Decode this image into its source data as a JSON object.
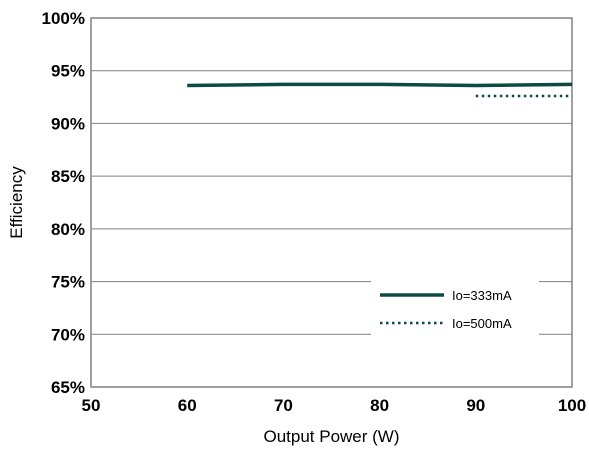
{
  "chart_data": {
    "type": "line",
    "title": "",
    "xlabel": "Output Power (W)",
    "ylabel": "Efficiency",
    "xlim": [
      50,
      100
    ],
    "ylim": [
      65,
      100
    ],
    "x_ticks": [
      50,
      60,
      70,
      80,
      90,
      100
    ],
    "x_tick_labels": [
      "50",
      "60",
      "70",
      "80",
      "90",
      "100"
    ],
    "y_ticks": [
      65,
      70,
      75,
      80,
      85,
      90,
      95,
      100
    ],
    "y_tick_labels": [
      "65%",
      "70%",
      "75%",
      "80%",
      "85%",
      "90%",
      "95%",
      "100%"
    ],
    "grid": "horizontal",
    "legend_position": "bottom-right",
    "series": [
      {
        "name": "Io=333mA",
        "style": "solid",
        "color": "#0b4a45",
        "points": [
          [
            60,
            93.6
          ],
          [
            70,
            93.7
          ],
          [
            80,
            93.7
          ],
          [
            90,
            93.6
          ],
          [
            100,
            93.7
          ]
        ]
      },
      {
        "name": "Io=500mA",
        "style": "dotted",
        "color": "#0b4a45",
        "points": [
          [
            90,
            92.6
          ],
          [
            100,
            92.6
          ]
        ]
      }
    ]
  }
}
